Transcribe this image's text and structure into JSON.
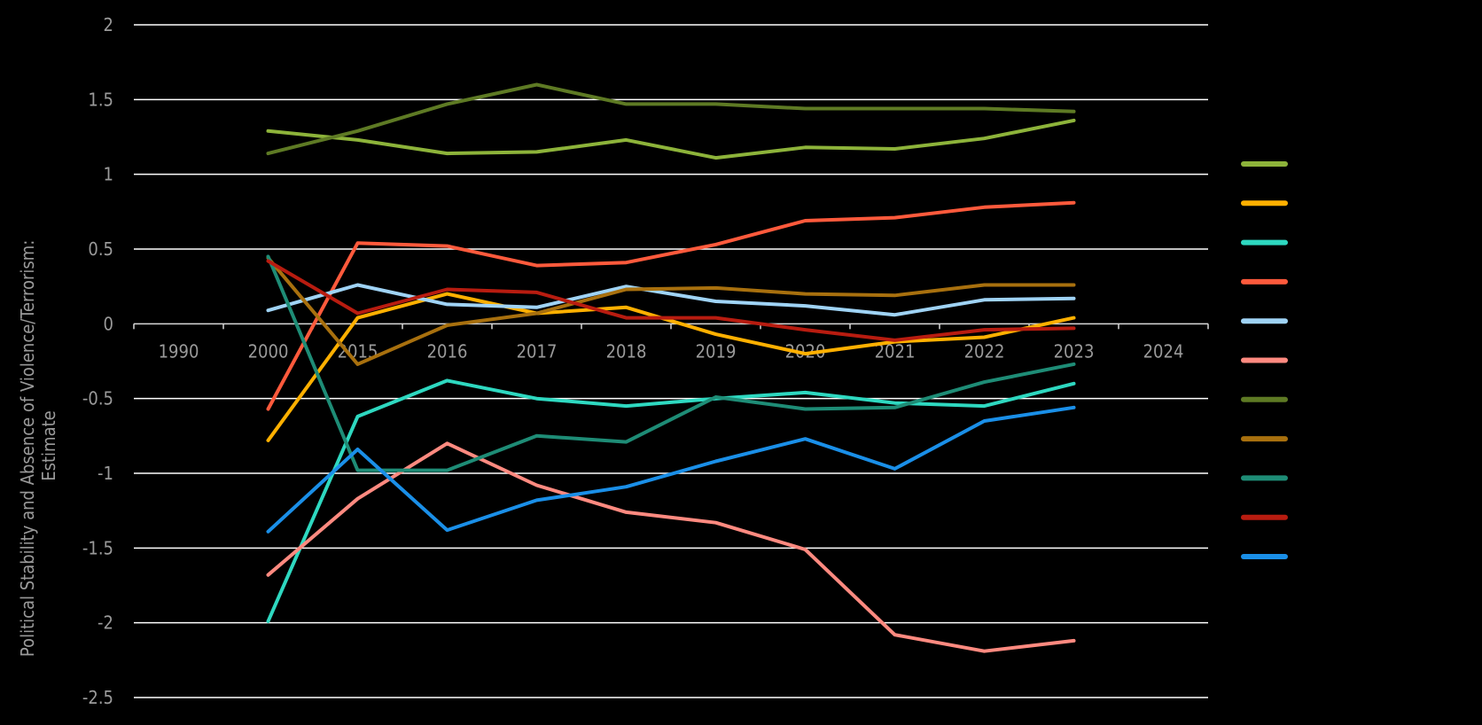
{
  "chart_data": {
    "type": "line",
    "title": "",
    "xlabel": "",
    "ylabel_lines": [
      "Political Stability and Absence of Violence/Terrorism:",
      "Estimate"
    ],
    "ylim": [
      -2.5,
      2
    ],
    "yticks": [
      2,
      1.5,
      1,
      0.5,
      0,
      -0.5,
      -1,
      -1.5,
      -2,
      -2.5
    ],
    "ytick_labels": [
      "2",
      "1.5",
      "1",
      "0.5",
      "0",
      "-0.5",
      "-1",
      "-1.5",
      "-2",
      "-2.5"
    ],
    "categories": [
      "1990",
      "2000",
      "2015",
      "2016",
      "2017",
      "2018",
      "2019",
      "2020",
      "2021",
      "2022",
      "2023",
      "2024"
    ],
    "grid": true,
    "legend_position": "right",
    "series": [
      {
        "color": "#8DB33A",
        "values": [
          null,
          1.29,
          1.23,
          1.14,
          1.15,
          1.23,
          1.11,
          1.18,
          1.17,
          1.24,
          1.36,
          null
        ]
      },
      {
        "color": "#FFB000",
        "values": [
          null,
          -0.78,
          0.04,
          0.2,
          0.07,
          0.11,
          -0.07,
          -0.2,
          -0.12,
          -0.09,
          0.04,
          null
        ]
      },
      {
        "color": "#2ED8C0",
        "values": [
          null,
          -1.99,
          -0.62,
          -0.38,
          -0.5,
          -0.55,
          -0.5,
          -0.46,
          -0.53,
          -0.55,
          -0.4,
          null
        ]
      },
      {
        "color": "#FF5A3C",
        "values": [
          null,
          -0.57,
          0.54,
          0.52,
          0.39,
          0.41,
          0.53,
          0.69,
          0.71,
          0.78,
          0.81,
          null
        ]
      },
      {
        "color": "#9FD3F5",
        "values": [
          null,
          0.09,
          0.26,
          0.13,
          0.11,
          0.25,
          0.15,
          0.12,
          0.06,
          0.16,
          0.17,
          null
        ]
      },
      {
        "color": "#FF8A80",
        "values": [
          null,
          -1.68,
          -1.17,
          -0.8,
          -1.08,
          -1.26,
          -1.33,
          -1.51,
          -2.08,
          -2.19,
          -2.12,
          null
        ]
      },
      {
        "color": "#5E7A24",
        "values": [
          null,
          1.14,
          1.29,
          1.47,
          1.6,
          1.47,
          1.47,
          1.44,
          1.44,
          1.44,
          1.42,
          null
        ]
      },
      {
        "color": "#A8700E",
        "values": [
          null,
          0.44,
          -0.27,
          -0.01,
          0.07,
          0.23,
          0.24,
          0.2,
          0.19,
          0.26,
          0.26,
          null
        ]
      },
      {
        "color": "#1E8C76",
        "values": [
          null,
          0.45,
          -0.98,
          -0.98,
          -0.75,
          -0.79,
          -0.49,
          -0.57,
          -0.56,
          -0.39,
          -0.27,
          null
        ]
      },
      {
        "color": "#B81C10",
        "values": [
          null,
          0.42,
          0.07,
          0.23,
          0.21,
          0.04,
          0.04,
          -0.04,
          -0.11,
          -0.04,
          -0.03,
          null
        ]
      },
      {
        "color": "#1A8FE8",
        "values": [
          null,
          -1.39,
          -0.84,
          -1.38,
          -1.18,
          -1.09,
          -0.92,
          -0.77,
          -0.97,
          -0.65,
          -0.56,
          null
        ]
      }
    ]
  },
  "colors": {
    "background": "#000000",
    "gridline": "#ffffff",
    "tick_text": "#9a9a9a"
  }
}
